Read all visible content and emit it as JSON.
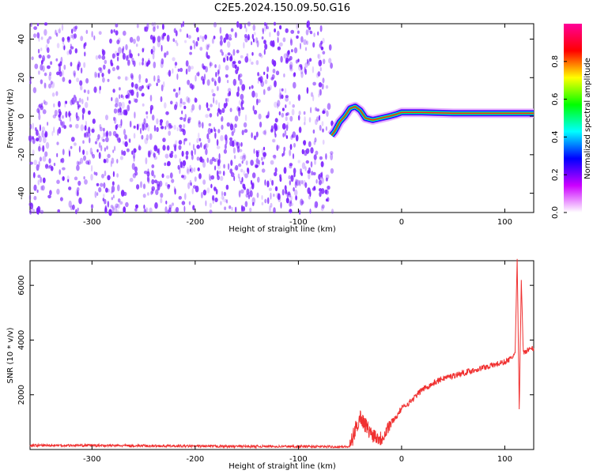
{
  "title": "C2E5.2024.150.09.50.G16",
  "colors": {
    "scatter": "#7a1fff",
    "snr_line": "#f03030",
    "axis": "#000000"
  },
  "chart_data": [
    {
      "type": "heatmap",
      "xlabel": "Height of straight line (km)",
      "ylabel": "Frequency (Hz)",
      "xlim": [
        -360,
        128
      ],
      "ylim": [
        -50,
        48
      ],
      "xticks": [
        -300,
        -200,
        -100,
        0,
        100
      ],
      "yticks": [
        -40,
        -20,
        0,
        20,
        40
      ],
      "noise_region": {
        "x": [
          -360,
          -67
        ],
        "note_style": "dense purple speckle, frequency noise"
      },
      "signal_track": [
        {
          "x": -68,
          "y": -10
        },
        {
          "x": -65,
          "y": -8
        },
        {
          "x": -60,
          "y": -3
        },
        {
          "x": -55,
          "y": 0
        },
        {
          "x": -50,
          "y": 4
        },
        {
          "x": -45,
          "y": 5
        },
        {
          "x": -40,
          "y": 3
        },
        {
          "x": -35,
          "y": -1
        },
        {
          "x": -28,
          "y": -2
        },
        {
          "x": -20,
          "y": -1
        },
        {
          "x": -12,
          "y": 0
        },
        {
          "x": -5,
          "y": 1
        },
        {
          "x": 0,
          "y": 2
        },
        {
          "x": 20,
          "y": 2
        },
        {
          "x": 50,
          "y": 1.5
        },
        {
          "x": 80,
          "y": 1.5
        },
        {
          "x": 110,
          "y": 1.5
        },
        {
          "x": 128,
          "y": 1.5
        }
      ],
      "colorbar": {
        "label": "Normalized spectral amplitude",
        "ticks": [
          0.0,
          0.2,
          0.4,
          0.6,
          0.8
        ],
        "tick_labels": [
          "0.0",
          "0.2",
          "0.4",
          "0.6",
          "0.8"
        ],
        "range": [
          0,
          1
        ],
        "stops": [
          "#ffffff",
          "#cc00ff",
          "#0000ff",
          "#00ffff",
          "#00ff00",
          "#ffff00",
          "#ff0000",
          "#ff0099"
        ]
      }
    },
    {
      "type": "line",
      "xlabel": "Height of straight line (km)",
      "ylabel": "SNR (10 * v/v)",
      "xlim": [
        -360,
        128
      ],
      "ylim": [
        0,
        6900
      ],
      "xticks": [
        -300,
        -200,
        -100,
        0,
        100
      ],
      "yticks": [
        2000,
        4000,
        6000
      ],
      "series": [
        {
          "points": [
            [
              -360,
              150
            ],
            [
              -300,
              150
            ],
            [
              -200,
              120
            ],
            [
              -100,
              110
            ],
            [
              -50,
              100
            ],
            [
              -45,
              700
            ],
            [
              -40,
              1200
            ],
            [
              -35,
              900
            ],
            [
              -30,
              600
            ],
            [
              -25,
              500
            ],
            [
              -20,
              400
            ],
            [
              -15,
              700
            ],
            [
              -10,
              1000
            ],
            [
              -5,
              1200
            ],
            [
              0,
              1500
            ],
            [
              10,
              1800
            ],
            [
              20,
              2200
            ],
            [
              30,
              2400
            ],
            [
              40,
              2600
            ],
            [
              50,
              2700
            ],
            [
              60,
              2800
            ],
            [
              70,
              2900
            ],
            [
              80,
              3000
            ],
            [
              90,
              3100
            ],
            [
              100,
              3200
            ],
            [
              105,
              3300
            ],
            [
              110,
              3500
            ],
            [
              112,
              6900
            ],
            [
              114,
              1500
            ],
            [
              116,
              6200
            ],
            [
              118,
              3500
            ],
            [
              120,
              3600
            ],
            [
              128,
              3700
            ]
          ]
        }
      ]
    }
  ]
}
